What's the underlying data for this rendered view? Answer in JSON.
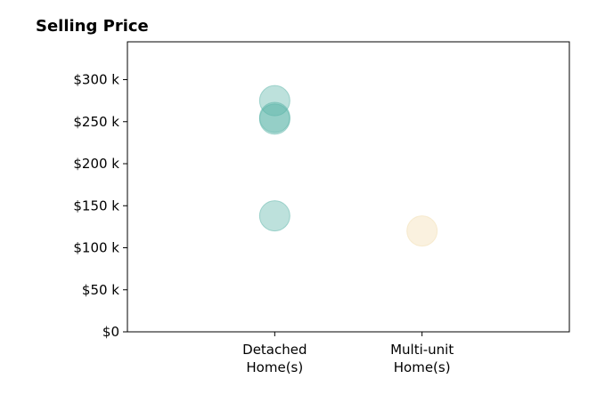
{
  "chart_data": {
    "type": "scatter",
    "title": "Selling Price",
    "xlabel": "",
    "ylabel": "",
    "categories": [
      [
        "Detached",
        "Home(s)"
      ],
      [
        "Multi-unit",
        "Home(s)"
      ]
    ],
    "y_ticks": [
      {
        "value": 0,
        "label": "$0"
      },
      {
        "value": 50000,
        "label": "$50 k"
      },
      {
        "value": 100000,
        "label": "$100 k"
      },
      {
        "value": 150000,
        "label": "$150 k"
      },
      {
        "value": 200000,
        "label": "$200 k"
      },
      {
        "value": 250000,
        "label": "$250 k"
      },
      {
        "value": 300000,
        "label": "$300 k"
      }
    ],
    "ylim": [
      0,
      345000
    ],
    "xlim": [
      -1,
      2
    ],
    "grid": false,
    "legend": "none",
    "series": [
      {
        "category_index": 0,
        "values": [
          275000,
          255000,
          253000,
          138000
        ],
        "color": "#5ab4a7"
      },
      {
        "category_index": 1,
        "values": [
          120000
        ],
        "color": "#f2ddb0"
      }
    ]
  }
}
